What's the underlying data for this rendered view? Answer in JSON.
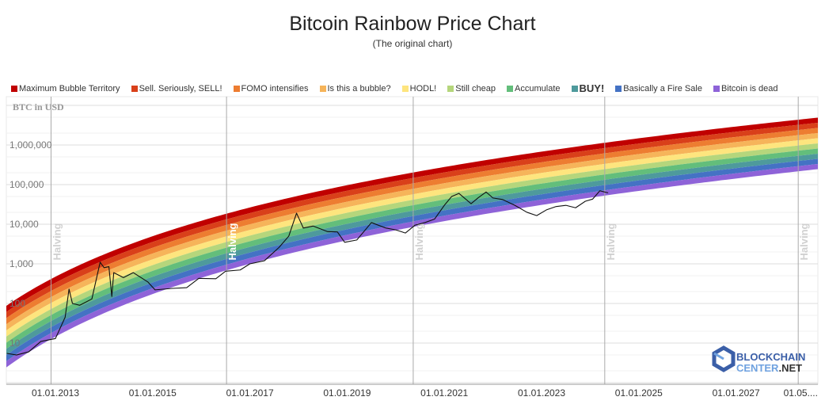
{
  "chart_data": {
    "type": "line",
    "title": "Bitcoin Rainbow Price Chart",
    "subtitle": "(The original chart)",
    "ylabel": "BTC in USD",
    "yscale": "log",
    "ylim": [
      1,
      16000000
    ],
    "xlim": [
      "2012-01-01",
      "2028-09-01"
    ],
    "grid": true,
    "legend_placement": "top",
    "y_ticks": [
      {
        "value": 10,
        "label": "10"
      },
      {
        "value": 100,
        "label": "100"
      },
      {
        "value": 1000,
        "label": "1,000"
      },
      {
        "value": 10000,
        "label": "10,000"
      },
      {
        "value": 100000,
        "label": "100,000"
      },
      {
        "value": 1000000,
        "label": "1,000,000"
      }
    ],
    "x_ticks": [
      {
        "date": 2013.0,
        "label": "01.01.2013"
      },
      {
        "date": 2015.0,
        "label": "01.01.2015"
      },
      {
        "date": 2017.0,
        "label": "01.01.2017"
      },
      {
        "date": 2019.0,
        "label": "01.01.2019"
      },
      {
        "date": 2021.0,
        "label": "01.01.2021"
      },
      {
        "date": 2023.0,
        "label": "01.01.2023"
      },
      {
        "date": 2025.0,
        "label": "01.01.2025"
      },
      {
        "date": 2027.0,
        "label": "01.01.2027"
      },
      {
        "date": 2028.33,
        "label": "01.05...."
      }
    ],
    "halvings": [
      {
        "date": 2012.91,
        "label": "Halving"
      },
      {
        "date": 2016.52,
        "label": "Halving"
      },
      {
        "date": 2020.36,
        "label": "Halving"
      },
      {
        "date": 2024.3,
        "label": "Halving"
      },
      {
        "date": 2028.28,
        "label": "Halving"
      }
    ],
    "bands": [
      {
        "name": "Maximum Bubble Territory",
        "color": "#c00000"
      },
      {
        "name": "Sell. Seriously, SELL!",
        "color": "#d9401a"
      },
      {
        "name": "FOMO intensifies",
        "color": "#ed7d31"
      },
      {
        "name": "Is this a bubble?",
        "color": "#f6b45a"
      },
      {
        "name": "HODL!",
        "color": "#fee57e"
      },
      {
        "name": "Still cheap",
        "color": "#b5d67c"
      },
      {
        "name": "Accumulate",
        "color": "#63be7b"
      },
      {
        "name": "BUY!",
        "color": "#4e9a9c",
        "bold": true
      },
      {
        "name": "Basically a Fire Sale",
        "color": "#4472c4"
      },
      {
        "name": "Bitcoin is dead",
        "color": "#8e63d8"
      }
    ],
    "price_series": {
      "color": "#111111",
      "x": [
        2012.0,
        2012.2,
        2012.45,
        2012.7,
        2013.0,
        2013.2,
        2013.28,
        2013.35,
        2013.5,
        2013.75,
        2013.92,
        2014.0,
        2014.1,
        2014.16,
        2014.2,
        2014.4,
        2014.6,
        2014.9,
        2015.05,
        2015.4,
        2015.7,
        2015.95,
        2016.3,
        2016.5,
        2016.8,
        2017.0,
        2017.3,
        2017.6,
        2017.8,
        2017.96,
        2018.1,
        2018.3,
        2018.6,
        2018.8,
        2018.95,
        2019.2,
        2019.5,
        2019.8,
        2020.0,
        2020.2,
        2020.4,
        2020.6,
        2020.8,
        2021.0,
        2021.15,
        2021.3,
        2021.55,
        2021.7,
        2021.86,
        2022.0,
        2022.2,
        2022.45,
        2022.7,
        2022.9,
        2023.1,
        2023.3,
        2023.5,
        2023.7,
        2023.9,
        2024.05,
        2024.2,
        2024.3,
        2024.37
      ],
      "y": [
        5.5,
        5,
        6,
        11,
        13,
        45,
        230,
        100,
        90,
        130,
        1100,
        800,
        850,
        150,
        600,
        450,
        600,
        350,
        220,
        240,
        250,
        430,
        420,
        650,
        700,
        1000,
        1200,
        2600,
        5000,
        19000,
        8000,
        9000,
        6500,
        6400,
        3500,
        4000,
        11000,
        8000,
        7200,
        6000,
        9500,
        11000,
        13500,
        30000,
        50000,
        60000,
        33000,
        47000,
        65000,
        46000,
        42000,
        30000,
        20000,
        16500,
        23000,
        28000,
        30000,
        26000,
        38000,
        43000,
        70000,
        65000,
        62000
      ]
    }
  },
  "watermark": {
    "line1": "BLOCKCHAIN",
    "line2a": "CENTER",
    "line2b": ".NET"
  }
}
